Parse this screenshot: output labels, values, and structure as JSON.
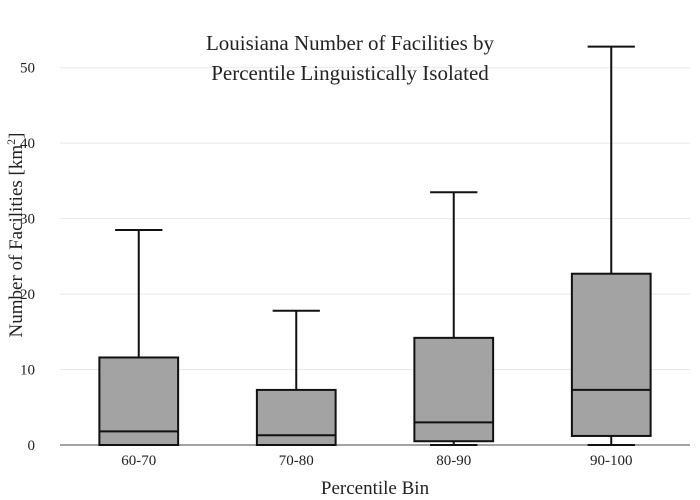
{
  "chart_data": {
    "type": "box",
    "title_lines": [
      "Louisiana Number of Facilities by",
      "Percentile Linguistically Isolated"
    ],
    "xlabel": "Percentile Bin",
    "ylabel": {
      "text": "Number of Facilities  [km",
      "superscript": "2",
      "suffix": "]"
    },
    "categories": [
      "60-70",
      "70-80",
      "80-90",
      "90-100"
    ],
    "boxes": [
      {
        "category": "60-70",
        "min": 0,
        "q1": 0,
        "median": 1.8,
        "q3": 11.6,
        "max": 28.5
      },
      {
        "category": "70-80",
        "min": 0,
        "q1": 0,
        "median": 1.3,
        "q3": 7.3,
        "max": 17.8
      },
      {
        "category": "80-90",
        "min": 0,
        "q1": 0.5,
        "median": 3.0,
        "q3": 14.2,
        "max": 33.5
      },
      {
        "category": "90-100",
        "min": 0,
        "q1": 1.2,
        "median": 7.3,
        "q3": 22.7,
        "max": 52.8
      }
    ],
    "y_ticks": [
      0,
      10,
      20,
      30,
      40,
      50
    ],
    "ylim": [
      0,
      55
    ],
    "grid": true,
    "box_fill": "#a3a3a3",
    "stroke": "#111111",
    "grid_color": "#e8e8e8"
  }
}
